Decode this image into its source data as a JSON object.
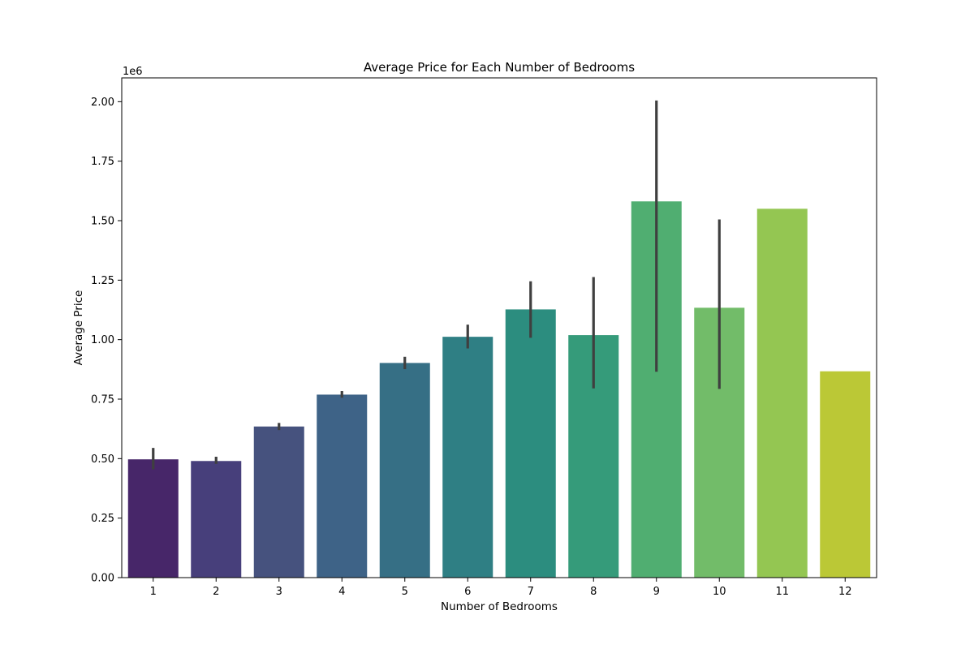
{
  "chart_data": {
    "type": "bar",
    "title": "Average Price for Each Number of Bedrooms",
    "xlabel": "Number of Bedrooms",
    "ylabel": "Average Price",
    "y_offset_label": "1e6",
    "ylim": [
      0,
      2100000
    ],
    "y_ticks": [
      0,
      250000,
      500000,
      750000,
      1000000,
      1250000,
      1500000,
      1750000,
      2000000
    ],
    "y_tick_labels": [
      "0.00",
      "0.25",
      "0.50",
      "0.75",
      "1.00",
      "1.25",
      "1.50",
      "1.75",
      "2.00"
    ],
    "grid": false,
    "categories": [
      "1",
      "2",
      "3",
      "4",
      "5",
      "6",
      "7",
      "8",
      "9",
      "10",
      "11",
      "12"
    ],
    "values": [
      497000,
      490000,
      635000,
      769000,
      902000,
      1012000,
      1127000,
      1019000,
      1581000,
      1134000,
      1550000,
      867000
    ],
    "error_low": [
      455000,
      478000,
      620000,
      756000,
      876000,
      963000,
      1008000,
      795000,
      865000,
      793000,
      null,
      null
    ],
    "error_high": [
      545000,
      508000,
      650000,
      784000,
      928000,
      1063000,
      1245000,
      1263000,
      2005000,
      1505000,
      null,
      null
    ],
    "colors": [
      "#472669",
      "#473f7b",
      "#46527e",
      "#3e6387",
      "#366f85",
      "#2f7f84",
      "#2c8d7f",
      "#359b7a",
      "#50ae71",
      "#72bc69",
      "#94c652",
      "#bbc836"
    ],
    "error_bar_color": "#3f3f3f"
  }
}
